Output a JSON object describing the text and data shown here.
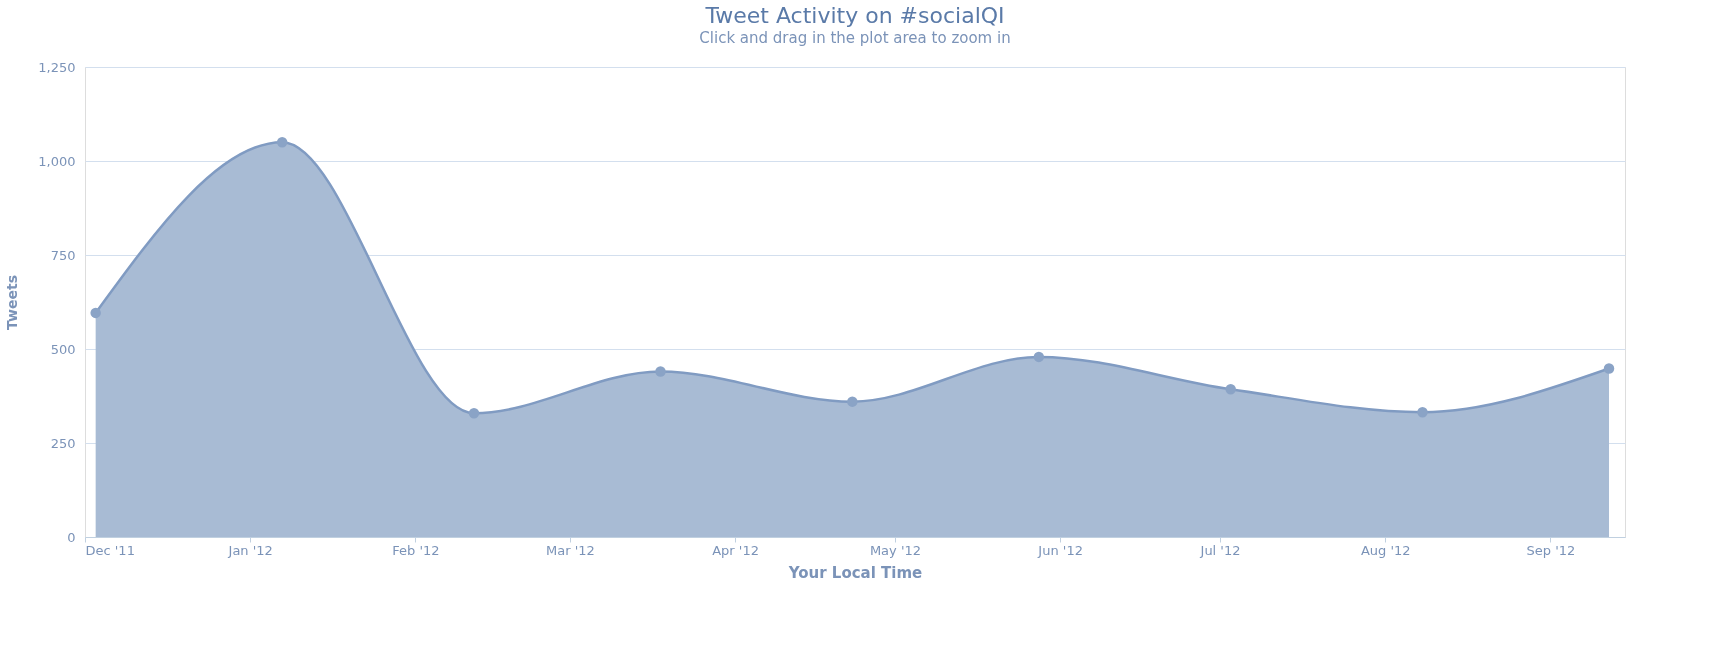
{
  "chart_data": {
    "type": "area",
    "title": "Tweet Activity on #socialQI",
    "subtitle": "Click and drag in the plot area to zoom in",
    "xlabel": "Your Local Time",
    "ylabel": "Tweets",
    "x": [
      "2011-12-03",
      "2012-01-07",
      "2012-02-12",
      "2012-03-18",
      "2012-04-23",
      "2012-05-28",
      "2012-07-03",
      "2012-08-08",
      "2012-09-12"
    ],
    "series": [
      {
        "color": "#a8bbd4",
        "values": [
          596,
          1050,
          329,
          440,
          360,
          479,
          393,
          332,
          448
        ]
      }
    ],
    "xlim": [
      "2011-12-01",
      "2012-09-15"
    ],
    "xticks": [
      {
        "value": "2011-12-01",
        "label": "Dec '11"
      },
      {
        "value": "2012-01-01",
        "label": "Jan '12"
      },
      {
        "value": "2012-02-01",
        "label": "Feb '12"
      },
      {
        "value": "2012-03-01",
        "label": "Mar '12"
      },
      {
        "value": "2012-04-01",
        "label": "Apr '12"
      },
      {
        "value": "2012-05-01",
        "label": "May '12"
      },
      {
        "value": "2012-06-01",
        "label": "Jun '12"
      },
      {
        "value": "2012-07-01",
        "label": "Jul '12"
      },
      {
        "value": "2012-08-01",
        "label": "Aug '12"
      },
      {
        "value": "2012-09-01",
        "label": "Sep '12"
      }
    ],
    "ylim": [
      0,
      1250
    ],
    "yticks": [
      0,
      250,
      500,
      750,
      {
        "value": 1000,
        "label": "1,000"
      },
      {
        "value": 1250,
        "label": "1,250"
      }
    ],
    "grid": "y",
    "marker": "circle"
  }
}
